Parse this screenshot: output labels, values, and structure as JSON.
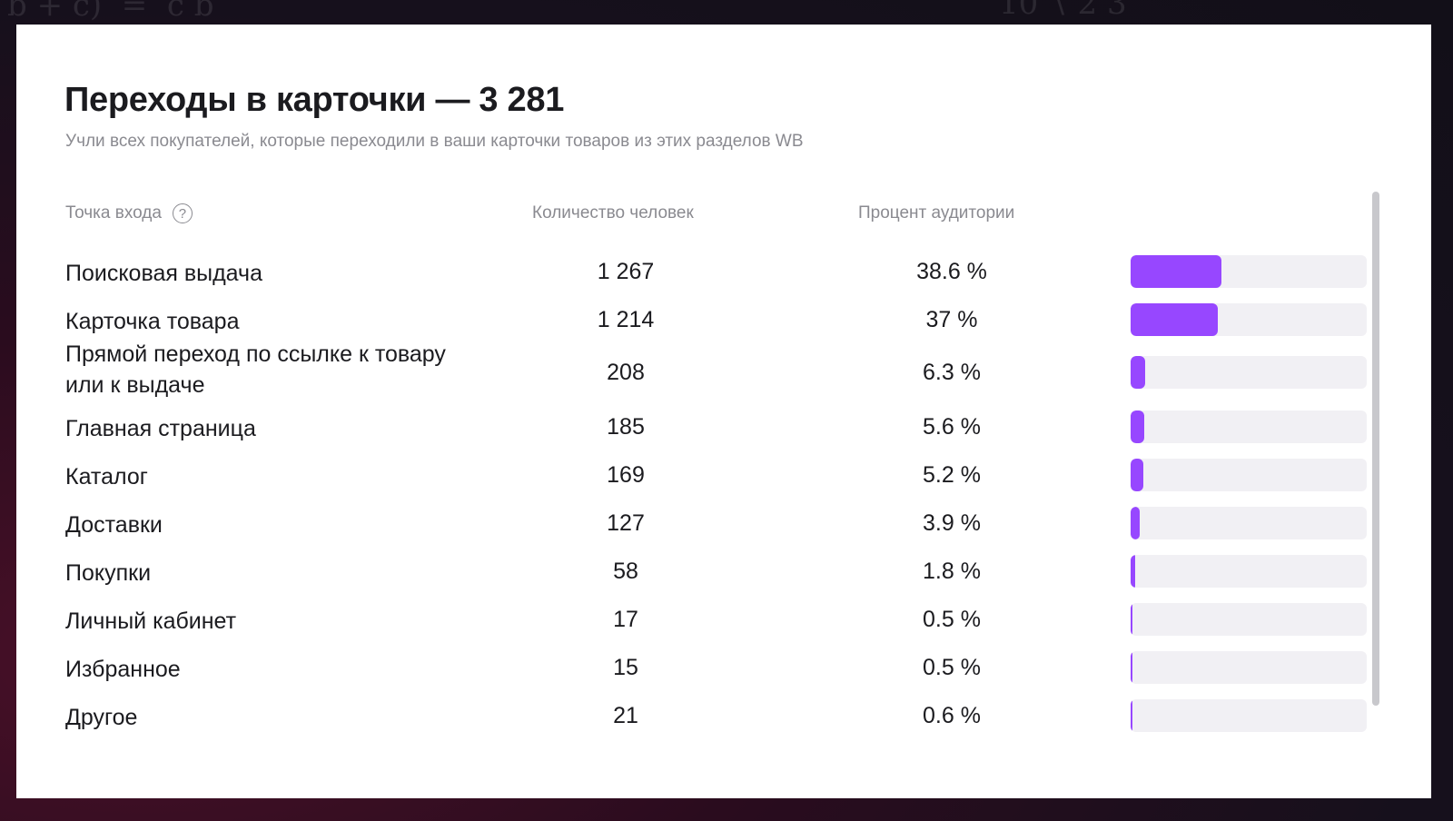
{
  "panel": {
    "title": "Переходы в карточки — 3 281",
    "subtitle": "Учли всех покупателей, которые переходили в ваши карточки товаров из этих разделов WB"
  },
  "table": {
    "headers": {
      "entry_point": "Точка входа",
      "help_icon": "?",
      "count": "Количество человек",
      "percent": "Процент аудитории"
    },
    "rows": [
      {
        "name": "Поисковая выдача",
        "count": "1 267",
        "percent": "38.6 %",
        "share": 38.6
      },
      {
        "name": "Карточка товара",
        "count": "1 214",
        "percent": "37 %",
        "share": 37
      },
      {
        "name": "Прямой переход по ссылке к товару или к выдаче",
        "count": "208",
        "percent": "6.3 %",
        "share": 6.3
      },
      {
        "name": "Главная страница",
        "count": "185",
        "percent": "5.6 %",
        "share": 5.6
      },
      {
        "name": "Каталог",
        "count": "169",
        "percent": "5.2 %",
        "share": 5.2
      },
      {
        "name": "Доставки",
        "count": "127",
        "percent": "3.9 %",
        "share": 3.9
      },
      {
        "name": "Покупки",
        "count": "58",
        "percent": "1.8 %",
        "share": 1.8
      },
      {
        "name": "Личный кабинет",
        "count": "17",
        "percent": "0.5 %",
        "share": 0.5
      },
      {
        "name": "Избранное",
        "count": "15",
        "percent": "0.5 %",
        "share": 0.5
      },
      {
        "name": "Другое",
        "count": "21",
        "percent": "0.6 %",
        "share": 0.6
      }
    ]
  },
  "colors": {
    "bar_fill": "#9747ff",
    "bar_track": "#f1f0f4"
  },
  "icons": {
    "help": "question-circle-icon"
  }
}
